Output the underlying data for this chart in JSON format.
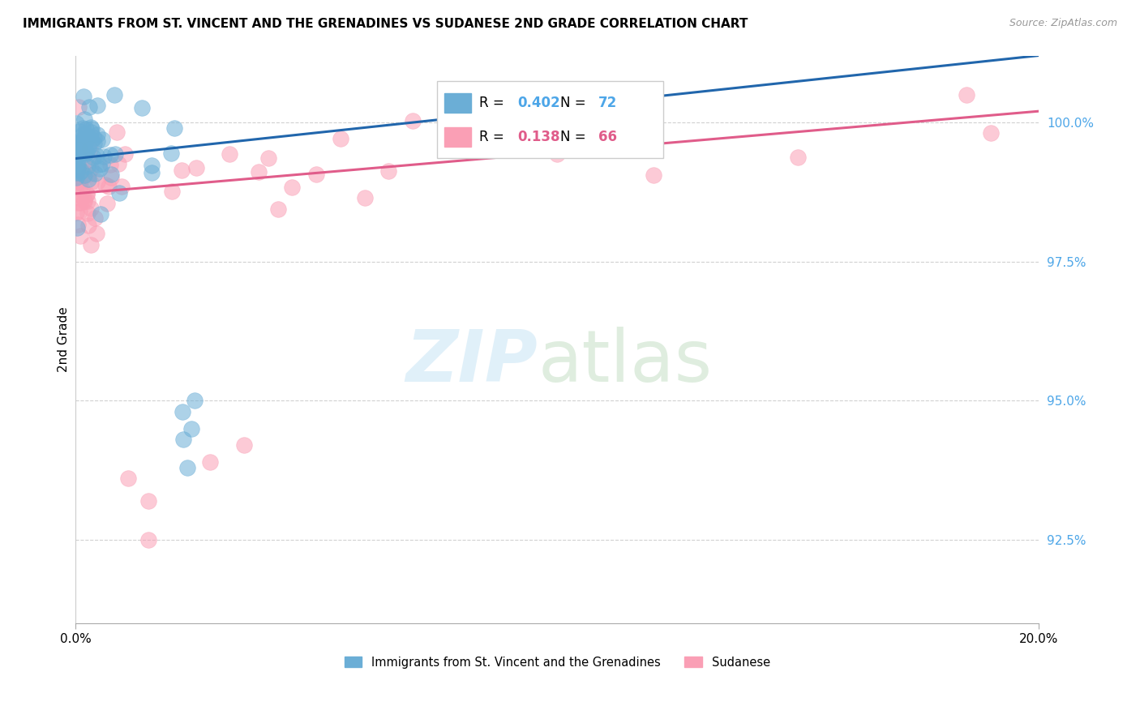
{
  "title": "IMMIGRANTS FROM ST. VINCENT AND THE GRENADINES VS SUDANESE 2ND GRADE CORRELATION CHART",
  "source": "Source: ZipAtlas.com",
  "ylabel": "2nd Grade",
  "yticks": [
    92.5,
    95.0,
    97.5,
    100.0
  ],
  "ytick_labels": [
    "92.5%",
    "95.0%",
    "97.5%",
    "100.0%"
  ],
  "xlim": [
    0.0,
    20.0
  ],
  "ylim": [
    91.0,
    101.2
  ],
  "legend_label_blue": "Immigrants from St. Vincent and the Grenadines",
  "legend_label_pink": "Sudanese",
  "blue_color": "#6baed6",
  "pink_color": "#fa9fb5",
  "blue_line_color": "#2166ac",
  "pink_line_color": "#e05c8a",
  "ytick_color": "#4da6e8",
  "grid_color": "#cccccc",
  "blue_r": "0.402",
  "blue_n": "72",
  "pink_r": "0.138",
  "pink_n": "66",
  "blue_trend_x0": 0.0,
  "blue_trend_y0": 99.35,
  "blue_trend_x1": 20.0,
  "blue_trend_y1": 101.2,
  "pink_trend_x0": 0.0,
  "pink_trend_y0": 98.72,
  "pink_trend_x1": 20.0,
  "pink_trend_y1": 100.2
}
